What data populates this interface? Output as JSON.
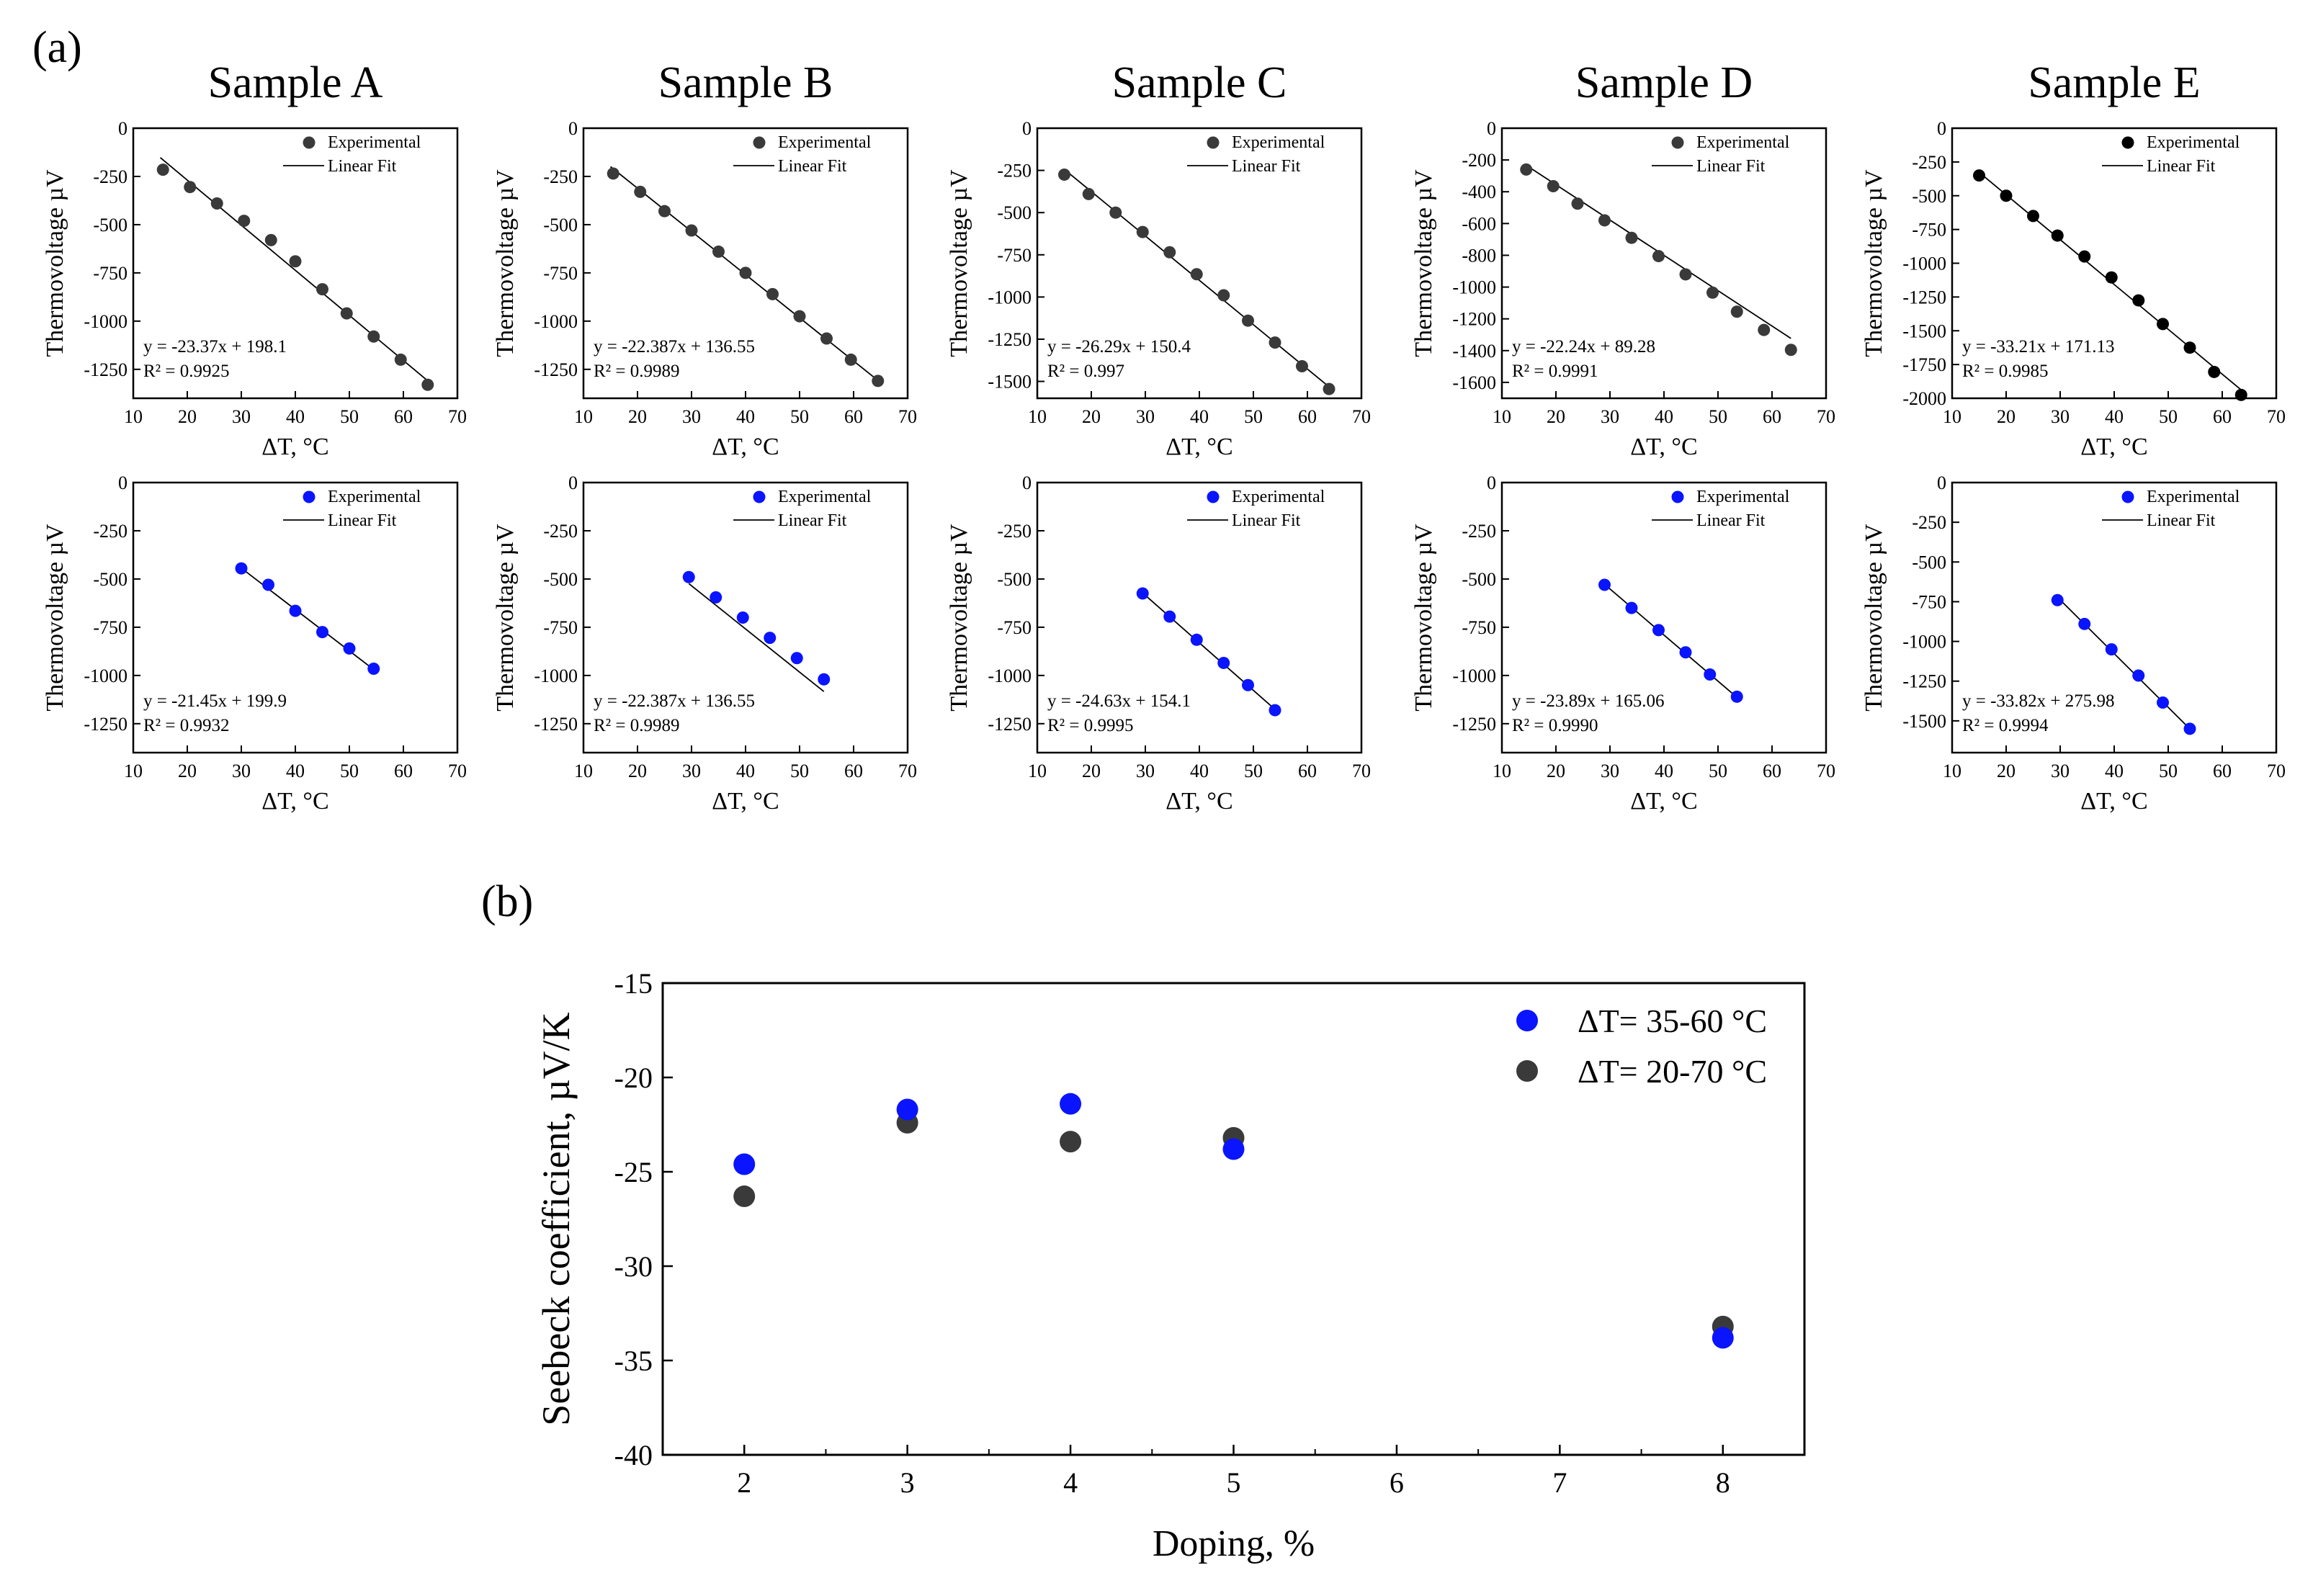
{
  "panel_a_label": "(a)",
  "panel_b_label": "(b)",
  "colors": {
    "dark": "#3a3a3a",
    "black": "#000000",
    "blue": "#0a14ff",
    "axis": "#000000"
  },
  "chart_data": [
    {
      "id": "A-top",
      "type": "scatter",
      "title": "Sample A",
      "xlabel": "ΔT, °C",
      "ylabel": "Thermovoltage µV",
      "xlim": [
        10,
        70
      ],
      "ylim": [
        -1400,
        0
      ],
      "yticks": [
        0,
        -250,
        -500,
        -750,
        -1000,
        -1250
      ],
      "xticks": [
        10,
        20,
        30,
        40,
        50,
        60,
        70
      ],
      "marker_color": "dark",
      "x": [
        15.5,
        20.5,
        25.5,
        30.5,
        35.5,
        40,
        45,
        49.5,
        54.5,
        59.5,
        64.5
      ],
      "y": [
        -215,
        -305,
        -390,
        -480,
        -580,
        -690,
        -835,
        -960,
        -1080,
        -1200,
        -1330
      ],
      "fit": {
        "slope": -23.37,
        "intercept": 198.1,
        "x_range": [
          15,
          64.5
        ]
      },
      "equation": "y = -23.37x + 198.1",
      "r2": "R² = 0.9925",
      "legend": [
        "Experimental",
        "Linear Fit"
      ]
    },
    {
      "id": "B-top",
      "type": "scatter",
      "title": "Sample B",
      "xlabel": "ΔT, °C",
      "ylabel": "Thermovoltage µV",
      "xlim": [
        10,
        70
      ],
      "ylim": [
        -1400,
        0
      ],
      "yticks": [
        0,
        -250,
        -500,
        -750,
        -1000,
        -1250
      ],
      "xticks": [
        10,
        20,
        30,
        40,
        50,
        60,
        70
      ],
      "marker_color": "dark",
      "x": [
        15.5,
        20.5,
        25,
        30,
        35,
        40,
        45,
        50,
        55,
        59.5,
        64.5
      ],
      "y": [
        -235,
        -330,
        -430,
        -530,
        -640,
        -750,
        -860,
        -975,
        -1090,
        -1200,
        -1310
      ],
      "fit": {
        "slope": -22.387,
        "intercept": 136.55,
        "x_range": [
          15,
          64.5
        ]
      },
      "equation": "y = -22.387x + 136.55",
      "r2": "R² = 0.9989",
      "legend": [
        "Experimental",
        "Linear Fit"
      ]
    },
    {
      "id": "C-top",
      "type": "scatter",
      "title": "Sample C",
      "xlabel": "ΔT, °C",
      "ylabel": "Thermovoltage µV",
      "xlim": [
        10,
        70
      ],
      "ylim": [
        -1600,
        0
      ],
      "yticks": [
        0,
        -250,
        -500,
        -750,
        -1000,
        -1250,
        -1500
      ],
      "xticks": [
        10,
        20,
        30,
        40,
        50,
        60,
        70
      ],
      "marker_color": "dark",
      "x": [
        15,
        19.5,
        24.5,
        29.5,
        34.5,
        39.5,
        44.5,
        49,
        54,
        59,
        64
      ],
      "y": [
        -275,
        -390,
        -500,
        -615,
        -735,
        -865,
        -990,
        -1140,
        -1270,
        -1410,
        -1545
      ],
      "fit": {
        "slope": -26.29,
        "intercept": 150.4,
        "x_range": [
          15,
          64
        ]
      },
      "equation": "y = -26.29x + 150.4",
      "r2": "R² = 0.997",
      "legend": [
        "Experimental",
        "Linear Fit"
      ]
    },
    {
      "id": "D-top",
      "type": "scatter",
      "title": "Sample D",
      "xlabel": "ΔT, °C",
      "ylabel": "Thermovoltage µV",
      "xlim": [
        10,
        70
      ],
      "ylim": [
        -1700,
        0
      ],
      "yticks": [
        0,
        -200,
        -400,
        -600,
        -800,
        -1000,
        -1200,
        -1400,
        -1600
      ],
      "xticks": [
        10,
        20,
        30,
        40,
        50,
        60,
        70
      ],
      "marker_color": "dark",
      "x": [
        14.5,
        19.5,
        24,
        29,
        34,
        39,
        44,
        49,
        53.5,
        58.5,
        63.5
      ],
      "y": [
        -260,
        -365,
        -475,
        -580,
        -690,
        -805,
        -920,
        -1035,
        -1155,
        -1270,
        -1395
      ],
      "fit": {
        "slope": -22.24,
        "intercept": 89.28,
        "x_range": [
          14.5,
          63.5
        ]
      },
      "equation": "y = -22.24x + 89.28",
      "r2": "R² = 0.9991",
      "legend": [
        "Experimental",
        "Linear Fit"
      ]
    },
    {
      "id": "E-top",
      "type": "scatter",
      "title": "Sample E",
      "xlabel": "ΔT, °C",
      "ylabel": "Thermovoltage µV",
      "xlim": [
        10,
        70
      ],
      "ylim": [
        -2000,
        0
      ],
      "yticks": [
        0,
        -250,
        -500,
        -750,
        -1000,
        -1250,
        -1500,
        -1750,
        -2000
      ],
      "xticks": [
        10,
        20,
        30,
        40,
        50,
        60,
        70
      ],
      "marker_color": "black",
      "x": [
        15,
        20,
        25,
        29.5,
        34.5,
        39.5,
        44.5,
        49,
        54,
        58.5,
        63.5
      ],
      "y": [
        -350,
        -500,
        -650,
        -795,
        -950,
        -1105,
        -1275,
        -1450,
        -1625,
        -1805,
        -1975
      ],
      "fit": {
        "slope": -33.21,
        "intercept": 171.13,
        "x_range": [
          15,
          64
        ]
      },
      "equation": "y = -33.21x + 171.13",
      "r2": "R² = 0.9985",
      "legend": [
        "Experimental",
        "Linear Fit"
      ]
    },
    {
      "id": "A-bottom",
      "type": "scatter",
      "xlabel": "ΔT, °C",
      "ylabel": "Thermovoltage µV",
      "xlim": [
        10,
        70
      ],
      "ylim": [
        -1400,
        0
      ],
      "yticks": [
        0,
        -250,
        -500,
        -750,
        -1000,
        -1250
      ],
      "xticks": [
        10,
        20,
        30,
        40,
        50,
        60,
        70
      ],
      "marker_color": "blue",
      "x": [
        30,
        35,
        40,
        45,
        50,
        54.5
      ],
      "y": [
        -445,
        -530,
        -665,
        -775,
        -860,
        -965
      ],
      "fit": {
        "slope": -21.45,
        "intercept": 199.9,
        "x_range": [
          30,
          54.5
        ]
      },
      "equation": "y = -21.45x + 199.9",
      "r2": "R² = 0.9932",
      "legend": [
        "Experimental",
        "Linear Fit"
      ]
    },
    {
      "id": "B-bottom",
      "type": "scatter",
      "xlabel": "ΔT, °C",
      "ylabel": "Thermovoltage µV",
      "xlim": [
        10,
        70
      ],
      "ylim": [
        -1400,
        0
      ],
      "yticks": [
        0,
        -250,
        -500,
        -750,
        -1000,
        -1250
      ],
      "xticks": [
        10,
        20,
        30,
        40,
        50,
        60,
        70
      ],
      "marker_color": "blue",
      "x": [
        29.5,
        34.5,
        39.5,
        44.5,
        49.5,
        54.5
      ],
      "y": [
        -490,
        -595,
        -700,
        -805,
        -910,
        -1020
      ],
      "fit": {
        "slope": -22.387,
        "intercept": 136.55,
        "x_range": [
          29.5,
          54.5
        ]
      },
      "equation": "y = -22.387x + 136.55",
      "r2": "R² = 0.9989",
      "legend": [
        "Experimental",
        "Linear Fit"
      ]
    },
    {
      "id": "C-bottom",
      "type": "scatter",
      "xlabel": "ΔT, °C",
      "ylabel": "Thermovoltage µV",
      "xlim": [
        10,
        70
      ],
      "ylim": [
        -1400,
        0
      ],
      "yticks": [
        0,
        -250,
        -500,
        -750,
        -1000,
        -1250
      ],
      "xticks": [
        10,
        20,
        30,
        40,
        50,
        60,
        70
      ],
      "marker_color": "blue",
      "x": [
        29.5,
        34.5,
        39.5,
        44.5,
        49,
        54
      ],
      "y": [
        -575,
        -695,
        -815,
        -935,
        -1050,
        -1180
      ],
      "fit": {
        "slope": -24.63,
        "intercept": 154.1,
        "x_range": [
          29.5,
          54
        ]
      },
      "equation": "y = -24.63x + 154.1",
      "r2": "R² = 0.9995",
      "legend": [
        "Experimental",
        "Linear Fit"
      ]
    },
    {
      "id": "D-bottom",
      "type": "scatter",
      "xlabel": "ΔT, °C",
      "ylabel": "Thermovoltage µV",
      "xlim": [
        10,
        70
      ],
      "ylim": [
        -1400,
        0
      ],
      "yticks": [
        0,
        -250,
        -500,
        -750,
        -1000,
        -1250
      ],
      "xticks": [
        10,
        20,
        30,
        40,
        50,
        60,
        70
      ],
      "marker_color": "blue",
      "x": [
        29,
        34,
        39,
        44,
        48.5,
        53.5
      ],
      "y": [
        -530,
        -650,
        -765,
        -880,
        -995,
        -1110
      ],
      "fit": {
        "slope": -23.89,
        "intercept": 165.06,
        "x_range": [
          29,
          53.5
        ]
      },
      "equation": "y = -23.89x + 165.06",
      "r2": "R² = 0.9990",
      "legend": [
        "Experimental",
        "Linear Fit"
      ]
    },
    {
      "id": "E-bottom",
      "type": "scatter",
      "xlabel": "ΔT, °C",
      "ylabel": "Thermovoltage µV",
      "xlim": [
        10,
        70
      ],
      "ylim": [
        -1700,
        0
      ],
      "yticks": [
        0,
        -250,
        -500,
        -750,
        -1000,
        -1250,
        -1500
      ],
      "xticks": [
        10,
        20,
        30,
        40,
        50,
        60,
        70
      ],
      "marker_color": "blue",
      "x": [
        29.5,
        34.5,
        39.5,
        44.5,
        49,
        54
      ],
      "y": [
        -740,
        -890,
        -1050,
        -1215,
        -1385,
        -1550
      ],
      "fit": {
        "slope": -33.82,
        "intercept": 275.98,
        "x_range": [
          29.5,
          54
        ]
      },
      "equation": "y = -33.82x + 275.98",
      "r2": "R² = 0.9994",
      "legend": [
        "Experimental",
        "Linear Fit"
      ]
    },
    {
      "id": "seebeck",
      "type": "scatter",
      "xlabel": "Doping, %",
      "ylabel": "Seebeck coefficient, µV/K",
      "xlim": [
        1.5,
        8.5
      ],
      "ylim": [
        -40,
        -15
      ],
      "yticks": [
        -15,
        -20,
        -25,
        -30,
        -35,
        -40
      ],
      "xticks": [
        2,
        3,
        4,
        5,
        6,
        7,
        8
      ],
      "series": [
        {
          "name": "ΔT= 35-60 °C",
          "color": "blue",
          "x": [
            2,
            3,
            4,
            5,
            8
          ],
          "y": [
            -24.6,
            -21.7,
            -21.4,
            -23.8,
            -33.8
          ]
        },
        {
          "name": "ΔT= 20-70 °C",
          "color": "dark",
          "x": [
            2,
            3,
            4,
            5,
            8
          ],
          "y": [
            -26.3,
            -22.4,
            -23.4,
            -23.2,
            -33.2
          ]
        }
      ]
    }
  ]
}
